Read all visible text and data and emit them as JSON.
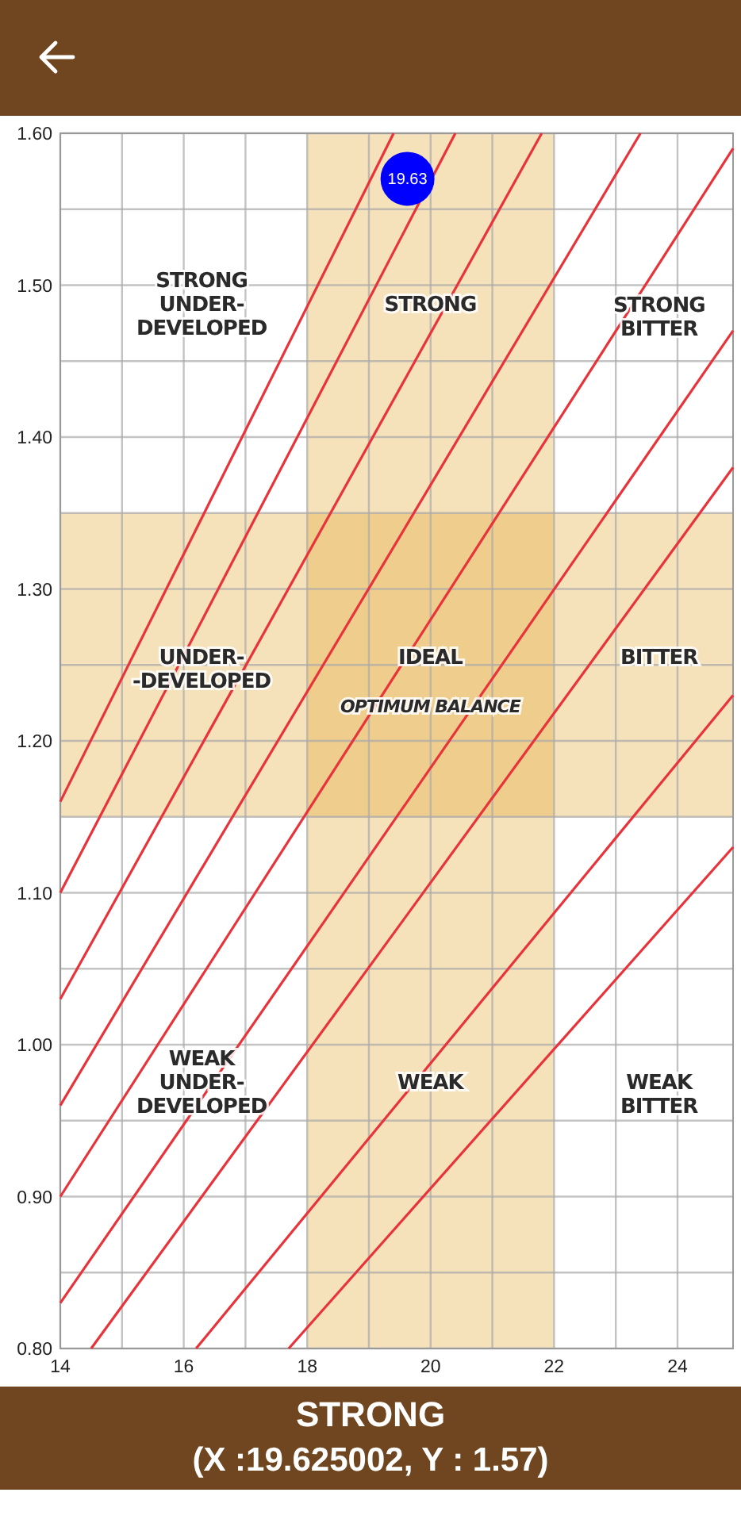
{
  "chart_data": {
    "type": "line",
    "xlim": [
      14,
      24.9
    ],
    "ylim": [
      0.8,
      1.6
    ],
    "xticks": [
      14,
      {
        "value": 15,
        "label": null
      },
      16,
      {
        "value": 17,
        "label": null
      },
      18,
      {
        "value": 19,
        "label": null
      },
      20,
      {
        "value": 21,
        "label": null
      },
      22,
      {
        "value": 23,
        "label": null
      },
      24
    ],
    "yticks": [
      {
        "value": 0.8,
        "label": "0.80"
      },
      {
        "value": 0.85,
        "label": null
      },
      {
        "value": 0.9,
        "label": "0.90"
      },
      {
        "value": 0.95,
        "label": null
      },
      {
        "value": 1.0,
        "label": "1.00"
      },
      {
        "value": 1.05,
        "label": null
      },
      {
        "value": 1.1,
        "label": "1.10"
      },
      {
        "value": 1.15,
        "label": null
      },
      {
        "value": 1.2,
        "label": "1.20"
      },
      {
        "value": 1.25,
        "label": null
      },
      {
        "value": 1.3,
        "label": "1.30"
      },
      {
        "value": 1.35,
        "label": null
      },
      {
        "value": 1.4,
        "label": "1.40"
      },
      {
        "value": 1.45,
        "label": null
      },
      {
        "value": 1.5,
        "label": "1.50"
      },
      {
        "value": 1.55,
        "label": null
      },
      {
        "value": 1.6,
        "label": "1.60"
      }
    ],
    "grid": true,
    "bands": [
      {
        "axis": "x",
        "from": 18,
        "to": 22,
        "color": "#e3a83a"
      },
      {
        "axis": "y",
        "from": 1.15,
        "to": 1.35,
        "color": "#e3a83a"
      }
    ],
    "series": [
      {
        "color": "#e8333a",
        "x": [
          14,
          19.4
        ],
        "values": [
          1.16,
          1.6
        ]
      },
      {
        "color": "#e8333a",
        "x": [
          14,
          20.4
        ],
        "values": [
          1.1,
          1.6
        ]
      },
      {
        "color": "#e8333a",
        "x": [
          14,
          21.8
        ],
        "values": [
          1.03,
          1.6
        ]
      },
      {
        "color": "#e8333a",
        "x": [
          14,
          23.4
        ],
        "values": [
          0.96,
          1.6
        ]
      },
      {
        "color": "#e8333a",
        "x": [
          14,
          24.9
        ],
        "values": [
          0.9,
          1.59
        ]
      },
      {
        "color": "#e8333a",
        "x": [
          14,
          24.9
        ],
        "values": [
          0.83,
          1.47
        ]
      },
      {
        "color": "#e8333a",
        "x": [
          14.5,
          24.9
        ],
        "values": [
          0.8,
          1.38
        ]
      },
      {
        "color": "#e8333a",
        "x": [
          16.2,
          24.9
        ],
        "values": [
          0.8,
          1.23
        ]
      },
      {
        "color": "#e8333a",
        "x": [
          17.7,
          24.9
        ],
        "values": [
          0.8,
          1.13
        ]
      },
      {
        "type": "scatter",
        "color": "#0000ff",
        "x": [
          19.625
        ],
        "values": [
          1.57
        ],
        "marker": "circle"
      }
    ],
    "annotations": [
      "STRONG\nUNDER-\nDEVELOPED",
      "STRONG",
      "STRONG\nBITTER",
      "UNDER-\n-DEVELOPED",
      "IDEAL",
      "OPTIMUM BALANCE",
      "BITTER",
      "WEAK\nUNDER-\nDEVELOPED",
      "WEAK",
      "WEAK\nBITTER",
      {
        "text": "19.63",
        "x": 19.625,
        "y": 1.57
      },
      "STRONG",
      "(X :19.625002, Y : 1.57)"
    ]
  }
}
